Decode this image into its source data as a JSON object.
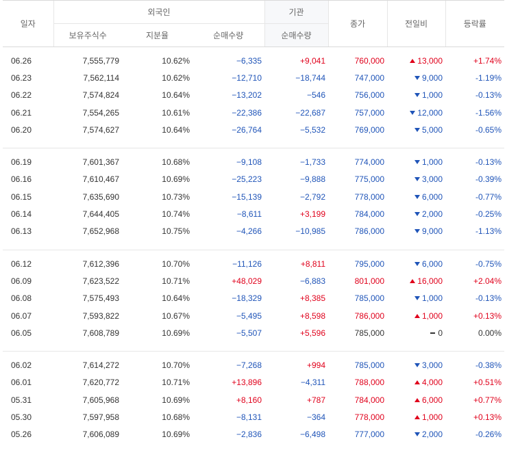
{
  "header": {
    "date": "일자",
    "foreign": "외국인",
    "institution": "기관",
    "close": "종가",
    "change": "전일비",
    "rate": "등락률",
    "holdings": "보유주식수",
    "share": "지분율",
    "foreign_net": "순매수량",
    "inst_net": "순매수량"
  },
  "groups": [
    [
      {
        "date": "06.26",
        "hold": "7,555,779",
        "ratio": "10.62%",
        "fnet": "−6,335",
        "fdir": "down",
        "inet": "+9,041",
        "idir": "up",
        "close": "760,000",
        "cdir": "up",
        "chg": "13,000",
        "rate": "+1.74%"
      },
      {
        "date": "06.23",
        "hold": "7,562,114",
        "ratio": "10.62%",
        "fnet": "−12,710",
        "fdir": "down",
        "inet": "−18,744",
        "idir": "down",
        "close": "747,000",
        "cdir": "down",
        "chg": "9,000",
        "rate": "-1.19%"
      },
      {
        "date": "06.22",
        "hold": "7,574,824",
        "ratio": "10.64%",
        "fnet": "−13,202",
        "fdir": "down",
        "inet": "−546",
        "idir": "down",
        "close": "756,000",
        "cdir": "down",
        "chg": "1,000",
        "rate": "-0.13%"
      },
      {
        "date": "06.21",
        "hold": "7,554,265",
        "ratio": "10.61%",
        "fnet": "−22,386",
        "fdir": "down",
        "inet": "−22,687",
        "idir": "down",
        "close": "757,000",
        "cdir": "down",
        "chg": "12,000",
        "rate": "-1.56%"
      },
      {
        "date": "06.20",
        "hold": "7,574,627",
        "ratio": "10.64%",
        "fnet": "−26,764",
        "fdir": "down",
        "inet": "−5,532",
        "idir": "down",
        "close": "769,000",
        "cdir": "down",
        "chg": "5,000",
        "rate": "-0.65%"
      }
    ],
    [
      {
        "date": "06.19",
        "hold": "7,601,367",
        "ratio": "10.68%",
        "fnet": "−9,108",
        "fdir": "down",
        "inet": "−1,733",
        "idir": "down",
        "close": "774,000",
        "cdir": "down",
        "chg": "1,000",
        "rate": "-0.13%"
      },
      {
        "date": "06.16",
        "hold": "7,610,467",
        "ratio": "10.69%",
        "fnet": "−25,223",
        "fdir": "down",
        "inet": "−9,888",
        "idir": "down",
        "close": "775,000",
        "cdir": "down",
        "chg": "3,000",
        "rate": "-0.39%"
      },
      {
        "date": "06.15",
        "hold": "7,635,690",
        "ratio": "10.73%",
        "fnet": "−15,139",
        "fdir": "down",
        "inet": "−2,792",
        "idir": "down",
        "close": "778,000",
        "cdir": "down",
        "chg": "6,000",
        "rate": "-0.77%"
      },
      {
        "date": "06.14",
        "hold": "7,644,405",
        "ratio": "10.74%",
        "fnet": "−8,611",
        "fdir": "down",
        "inet": "+3,199",
        "idir": "up",
        "close": "784,000",
        "cdir": "down",
        "chg": "2,000",
        "rate": "-0.25%"
      },
      {
        "date": "06.13",
        "hold": "7,652,968",
        "ratio": "10.75%",
        "fnet": "−4,266",
        "fdir": "down",
        "inet": "−10,985",
        "idir": "down",
        "close": "786,000",
        "cdir": "down",
        "chg": "9,000",
        "rate": "-1.13%"
      }
    ],
    [
      {
        "date": "06.12",
        "hold": "7,612,396",
        "ratio": "10.70%",
        "fnet": "−11,126",
        "fdir": "down",
        "inet": "+8,811",
        "idir": "up",
        "close": "795,000",
        "cdir": "down",
        "chg": "6,000",
        "rate": "-0.75%"
      },
      {
        "date": "06.09",
        "hold": "7,623,522",
        "ratio": "10.71%",
        "fnet": "+48,029",
        "fdir": "up",
        "inet": "−6,883",
        "idir": "down",
        "close": "801,000",
        "cdir": "up",
        "chg": "16,000",
        "rate": "+2.04%"
      },
      {
        "date": "06.08",
        "hold": "7,575,493",
        "ratio": "10.64%",
        "fnet": "−18,329",
        "fdir": "down",
        "inet": "+8,385",
        "idir": "up",
        "close": "785,000",
        "cdir": "down",
        "chg": "1,000",
        "rate": "-0.13%"
      },
      {
        "date": "06.07",
        "hold": "7,593,822",
        "ratio": "10.67%",
        "fnet": "−5,495",
        "fdir": "down",
        "inet": "+8,598",
        "idir": "up",
        "close": "786,000",
        "cdir": "up",
        "chg": "1,000",
        "rate": "+0.13%"
      },
      {
        "date": "06.05",
        "hold": "7,608,789",
        "ratio": "10.69%",
        "fnet": "−5,507",
        "fdir": "down",
        "inet": "+5,596",
        "idir": "up",
        "close": "785,000",
        "cdir": "flat",
        "chg": "0",
        "rate": "0.00%"
      }
    ],
    [
      {
        "date": "06.02",
        "hold": "7,614,272",
        "ratio": "10.70%",
        "fnet": "−7,268",
        "fdir": "down",
        "inet": "+994",
        "idir": "up",
        "close": "785,000",
        "cdir": "down",
        "chg": "3,000",
        "rate": "-0.38%"
      },
      {
        "date": "06.01",
        "hold": "7,620,772",
        "ratio": "10.71%",
        "fnet": "+13,896",
        "fdir": "up",
        "inet": "−4,311",
        "idir": "down",
        "close": "788,000",
        "cdir": "up",
        "chg": "4,000",
        "rate": "+0.51%"
      },
      {
        "date": "05.31",
        "hold": "7,605,968",
        "ratio": "10.69%",
        "fnet": "+8,160",
        "fdir": "up",
        "inet": "+787",
        "idir": "up",
        "close": "784,000",
        "cdir": "up",
        "chg": "6,000",
        "rate": "+0.77%"
      },
      {
        "date": "05.30",
        "hold": "7,597,958",
        "ratio": "10.68%",
        "fnet": "−8,131",
        "fdir": "down",
        "inet": "−364",
        "idir": "down",
        "close": "778,000",
        "cdir": "up",
        "chg": "1,000",
        "rate": "+0.13%"
      },
      {
        "date": "05.26",
        "hold": "7,606,089",
        "ratio": "10.69%",
        "fnet": "−2,836",
        "fdir": "down",
        "inet": "−6,498",
        "idir": "down",
        "close": "777,000",
        "cdir": "down",
        "chg": "2,000",
        "rate": "-0.26%"
      }
    ]
  ]
}
